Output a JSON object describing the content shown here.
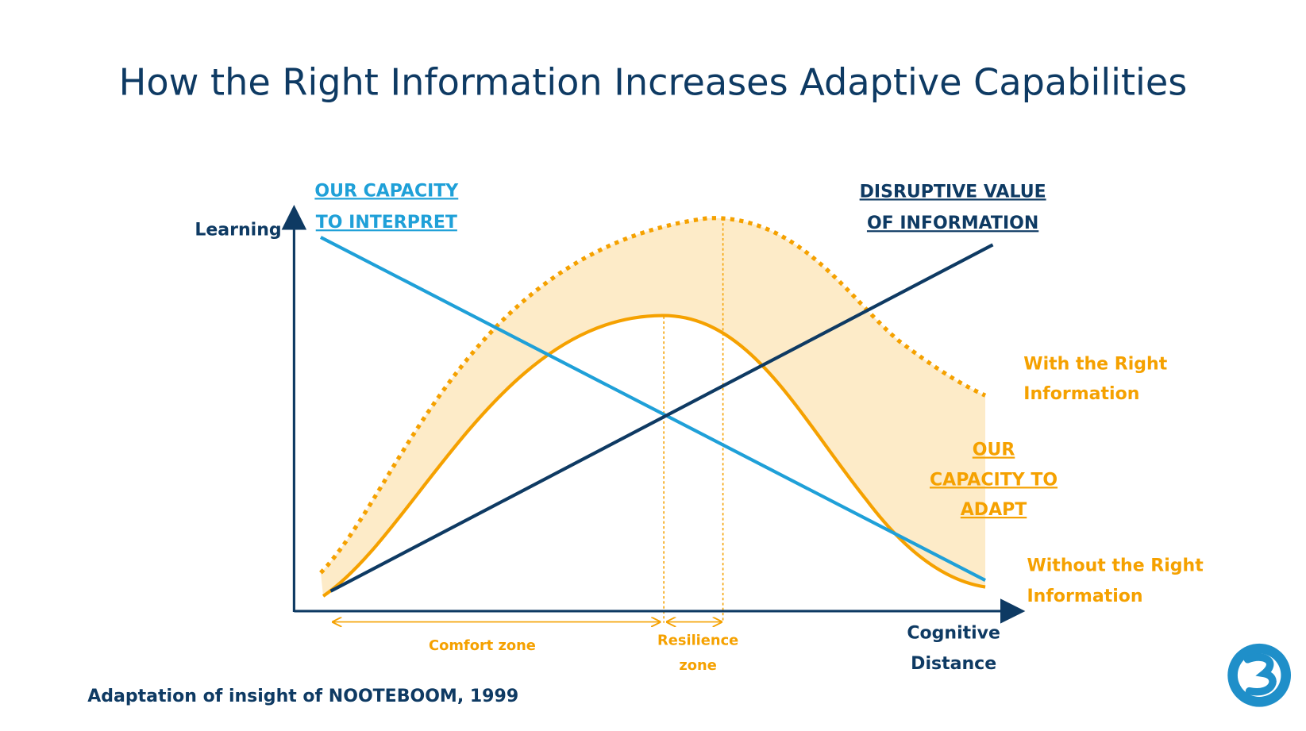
{
  "title": "How the Right Information Increases Adaptive Capabilities",
  "y_axis_label": "Learning",
  "x_axis_label": [
    "Cognitive",
    "Distance"
  ],
  "capacity_to_interpret": [
    "OUR CAPACITY",
    "TO INTERPRET"
  ],
  "disruptive_value": [
    "DISRUPTIVE VALUE",
    "OF INFORMATION"
  ],
  "with_right_information": [
    "With the Right",
    "Information"
  ],
  "capacity_to_adapt": [
    "OUR",
    "CAPACITY TO",
    "ADAPT"
  ],
  "without_right_information": [
    "Without the Right",
    "Information"
  ],
  "comfort_zone": "Comfort zone",
  "resilience_zone": [
    "Resilience",
    "zone"
  ],
  "footer": "Adaptation of insight of NOOTEBOOM, 1999"
}
